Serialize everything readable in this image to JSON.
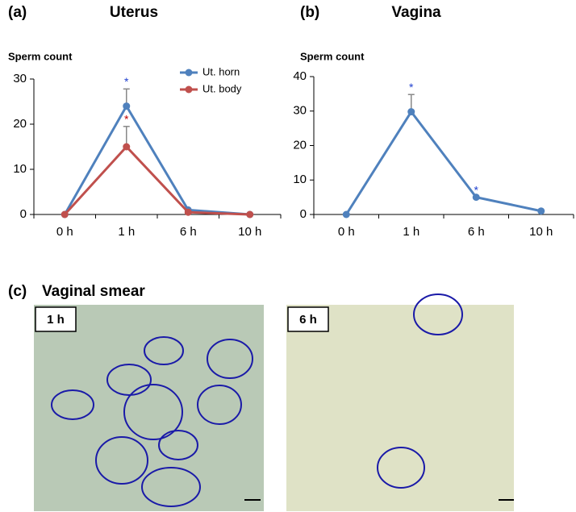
{
  "chart_data": [
    {
      "type": "line",
      "panel_label": "(a)",
      "title": "Uterus",
      "y_label": "Sperm count",
      "categories": [
        "0 h",
        "1 h",
        "6 h",
        "10 h"
      ],
      "series": [
        {
          "name": "Ut. horn",
          "color": "#4f81bd",
          "values": [
            0,
            24,
            1,
            0
          ],
          "errors": [
            null,
            3.8,
            null,
            null
          ],
          "significance": [
            null,
            "*",
            null,
            null
          ],
          "significance_color": "#1f3fcf"
        },
        {
          "name": "Ut. body",
          "color": "#c0504d",
          "values": [
            0,
            15,
            0.5,
            0
          ],
          "errors": [
            null,
            4.5,
            null,
            null
          ],
          "significance": [
            null,
            "*",
            null,
            null
          ],
          "significance_color": "#c00000"
        }
      ],
      "ylim": [
        0,
        30
      ],
      "yticks": [
        0,
        10,
        20,
        30
      ],
      "legend": "top-right"
    },
    {
      "type": "line",
      "panel_label": "(b)",
      "title": "Vagina",
      "y_label": "Sperm count",
      "categories": [
        "0 h",
        "1 h",
        "6 h",
        "10 h"
      ],
      "series": [
        {
          "color": "#4f81bd",
          "values": [
            0,
            29.8,
            5,
            1
          ],
          "errors": [
            null,
            5,
            null,
            null
          ],
          "significance": [
            null,
            "*",
            "*",
            null
          ],
          "significance_color": "#1f3fcf"
        }
      ],
      "ylim": [
        0,
        40
      ],
      "yticks": [
        0,
        10,
        20,
        30,
        40
      ]
    }
  ],
  "figure": {
    "panel_label": "(c)",
    "title": "Vaginal smear",
    "images": [
      "1 h",
      "6 h"
    ]
  }
}
